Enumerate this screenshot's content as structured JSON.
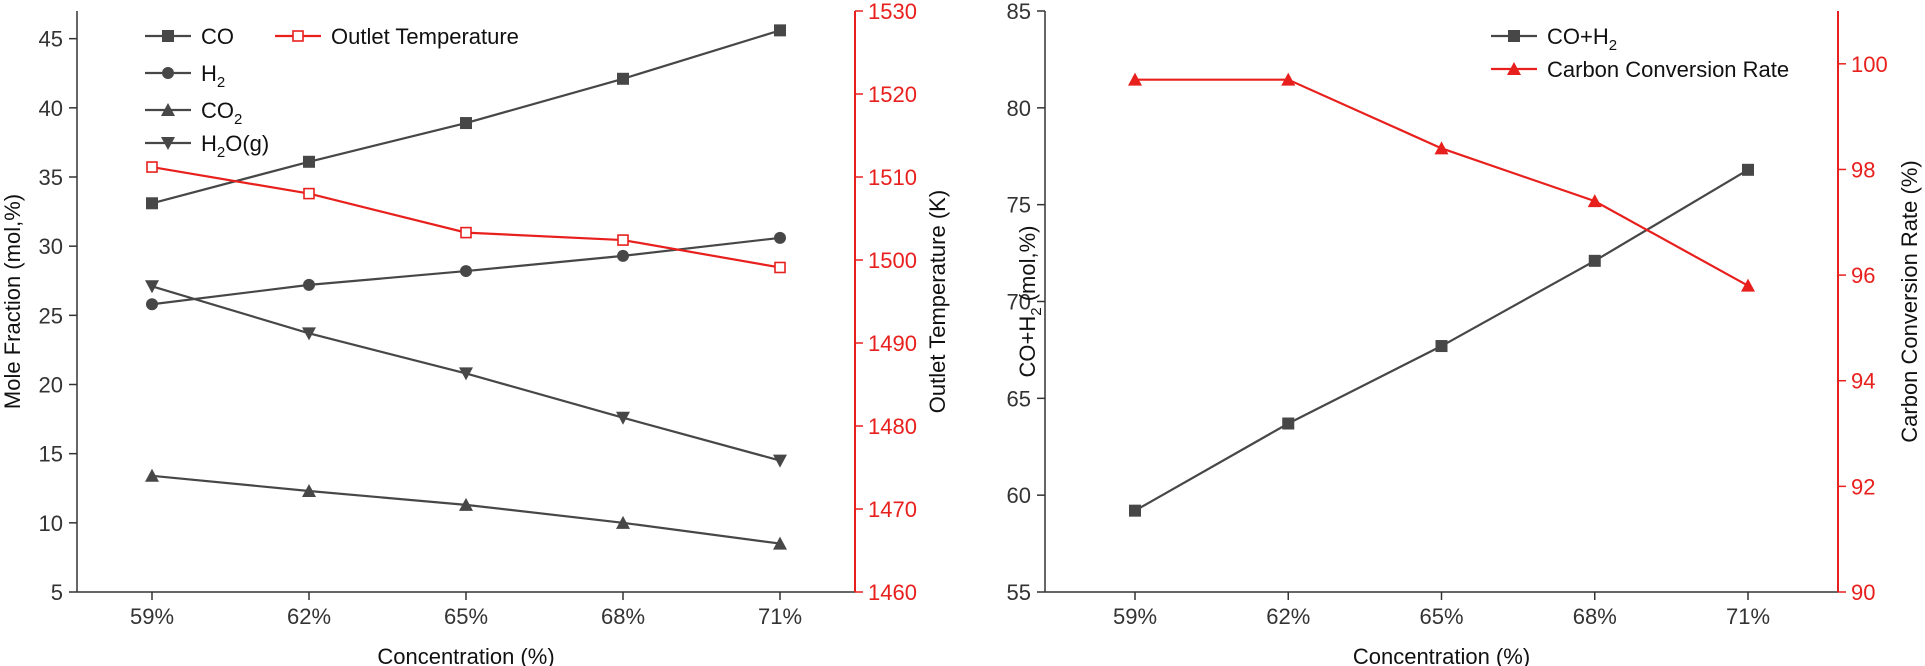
{
  "colors": {
    "series_dark": "#474747",
    "series_red": "#e8201d",
    "axis_dark": "#333333",
    "axis_red": "#e8201d"
  },
  "chart_data": [
    {
      "type": "line",
      "categories": [
        "59%",
        "62%",
        "65%",
        "68%",
        "71%"
      ],
      "xlabel": "Concentration (%)",
      "ylabel": "Mole Fraction (mol,%)",
      "ylim": [
        5,
        47
      ],
      "yticks": [
        5,
        10,
        15,
        20,
        25,
        30,
        35,
        40,
        45
      ],
      "y2label": "Outlet Temperature (K)",
      "y2lim": [
        1460,
        1530
      ],
      "y2ticks": [
        1460,
        1470,
        1480,
        1490,
        1500,
        1510,
        1520,
        1530
      ],
      "legend_position": "top-left",
      "series": [
        {
          "name": "CO",
          "label_main": "CO",
          "label_sub": "",
          "label_tail": "",
          "marker": "square",
          "axis": "left",
          "color": "#474747",
          "values": [
            33.1,
            36.1,
            38.9,
            42.1,
            45.6
          ]
        },
        {
          "name": "H2",
          "label_main": "H",
          "label_sub": "2",
          "label_tail": "",
          "marker": "circle",
          "axis": "left",
          "color": "#474747",
          "values": [
            25.8,
            27.2,
            28.2,
            29.3,
            30.6
          ]
        },
        {
          "name": "CO2",
          "label_main": "CO",
          "label_sub": "2",
          "label_tail": "",
          "marker": "triangle-up",
          "axis": "left",
          "color": "#474747",
          "values": [
            13.4,
            12.3,
            11.3,
            10.0,
            8.5
          ]
        },
        {
          "name": "H2O(g)",
          "label_main": "H",
          "label_sub": "2",
          "label_tail": "O(g)",
          "marker": "triangle-down",
          "axis": "left",
          "color": "#474747",
          "values": [
            27.1,
            23.7,
            20.8,
            17.6,
            14.5
          ]
        },
        {
          "name": "Outlet Temperature",
          "label_main": "Outlet Temperature",
          "label_sub": "",
          "label_tail": "",
          "marker": "open-square",
          "axis": "right",
          "color": "#e8201d",
          "values": [
            1511.2,
            1508.0,
            1503.3,
            1502.4,
            1499.1
          ]
        }
      ]
    },
    {
      "type": "line",
      "categories": [
        "59%",
        "62%",
        "65%",
        "68%",
        "71%"
      ],
      "xlabel": "Concentration (%)",
      "ylabel": "CO+H2 (mol,%)",
      "ylabel_main": "CO+H",
      "ylabel_sub": "2",
      "ylabel_tail": " (mol,%)",
      "ylim": [
        55,
        85
      ],
      "yticks": [
        55,
        60,
        65,
        70,
        75,
        80,
        85
      ],
      "y2label": "Carbon Conversion Rate (%)",
      "y2lim": [
        90,
        101
      ],
      "y2ticks": [
        90,
        92,
        94,
        96,
        98,
        100
      ],
      "legend_position": "top-right",
      "series": [
        {
          "name": "CO+H2",
          "label_main": "CO+H",
          "label_sub": "2",
          "label_tail": "",
          "marker": "square",
          "axis": "left",
          "color": "#474747",
          "values": [
            59.2,
            63.7,
            67.7,
            72.1,
            76.8
          ]
        },
        {
          "name": "Carbon Conversion Rate",
          "label_main": "Carbon Conversion Rate",
          "label_sub": "",
          "label_tail": "",
          "marker": "triangle-up",
          "axis": "right",
          "color": "#e8201d",
          "values": [
            99.7,
            99.7,
            98.4,
            97.4,
            95.8
          ]
        }
      ]
    }
  ]
}
